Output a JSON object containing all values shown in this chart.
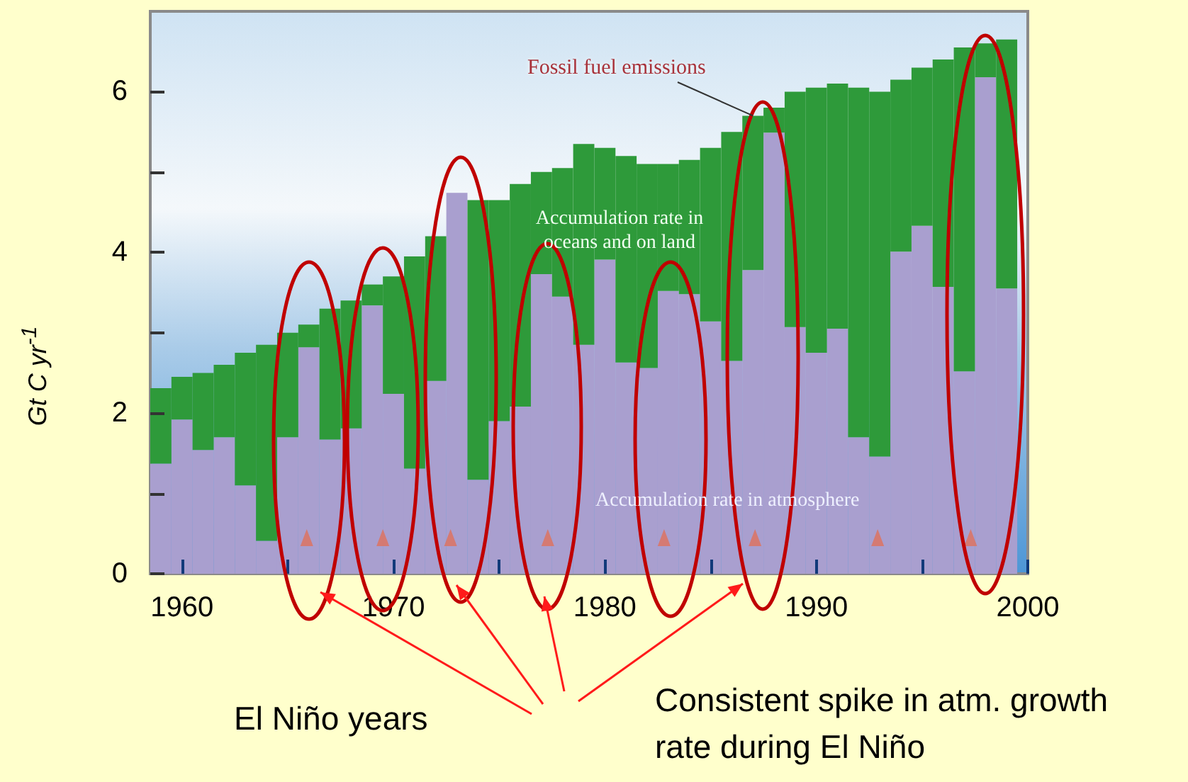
{
  "chart_data": {
    "type": "bar",
    "ylabel": "Gt C yr$^{-1}$",
    "x": [
      1959,
      1960,
      1961,
      1962,
      1963,
      1964,
      1965,
      1966,
      1967,
      1968,
      1969,
      1970,
      1971,
      1972,
      1973,
      1974,
      1975,
      1976,
      1977,
      1978,
      1979,
      1980,
      1981,
      1982,
      1983,
      1984,
      1985,
      1986,
      1987,
      1988,
      1989,
      1990,
      1991,
      1992,
      1993,
      1994,
      1995,
      1996,
      1997,
      1998,
      1999
    ],
    "xlim": [
      1958.5,
      2000
    ],
    "xticks": [
      1960,
      {
        "value": 1965,
        "label": null
      },
      1970,
      {
        "value": 1975,
        "label": null
      },
      1980,
      {
        "value": 1985,
        "label": null
      },
      1990,
      {
        "value": 1995,
        "label": null
      },
      2000
    ],
    "ylim": [
      0,
      7
    ],
    "yticks": [
      0,
      {
        "value": 1,
        "label": null
      },
      2,
      {
        "value": 3,
        "label": null
      },
      4,
      {
        "value": 5,
        "label": null
      },
      6
    ],
    "series": [
      {
        "name": "Accumulation rate in atmosphere",
        "color": "#a99fcf",
        "values": [
          1.37,
          1.92,
          1.54,
          1.7,
          1.1,
          0.41,
          1.7,
          2.82,
          1.67,
          1.81,
          3.34,
          2.24,
          1.31,
          2.4,
          4.74,
          1.17,
          1.9,
          2.08,
          3.73,
          3.45,
          2.85,
          3.91,
          2.63,
          2.56,
          3.52,
          3.48,
          3.14,
          2.65,
          3.78,
          5.49,
          3.07,
          2.75,
          3.05,
          1.7,
          1.46,
          4.01,
          4.33,
          3.57,
          2.52,
          6.18,
          3.55
        ]
      },
      {
        "name": "Accumulation rate in oceans and on land",
        "color": "#2e9a3a",
        "values": [
          0.94,
          0.53,
          0.96,
          0.9,
          1.65,
          2.44,
          1.3,
          0.28,
          1.63,
          1.59,
          0.26,
          1.46,
          2.64,
          1.8,
          null,
          3.48,
          2.75,
          2.77,
          1.27,
          1.6,
          2.5,
          1.39,
          2.57,
          2.54,
          1.58,
          1.67,
          2.16,
          2.85,
          1.92,
          0.31,
          2.93,
          3.3,
          3.05,
          4.35,
          4.54,
          2.14,
          1.97,
          2.83,
          4.03,
          0.42,
          3.1
        ]
      },
      {
        "type": "scatter",
        "marker": "triangle",
        "color": "#e0705a",
        "x": [
          1965.9,
          1969.5,
          1972.7,
          1977.3,
          1982.8,
          1987.1,
          1992.9,
          1997.3
        ],
        "values": [
          0.45,
          0.45,
          0.45,
          0.45,
          0.45,
          0.45,
          0.45,
          0.45
        ]
      }
    ],
    "stacked": true,
    "annotations": [
      {
        "text": "Fossil fuel emissions",
        "x": 1987,
        "y": 5.7
      },
      "El Niño years",
      "Consistent spike in atm. growth rate during El Niño"
    ],
    "grid": false,
    "legend": false
  }
}
